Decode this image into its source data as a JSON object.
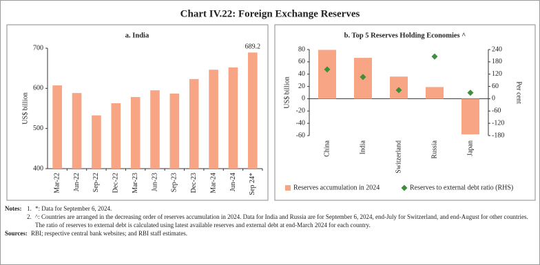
{
  "title": "Chart IV.22: Foreign Exchange Reserves",
  "chart_data": [
    {
      "type": "bar",
      "title": "a. India",
      "y_label": "US$ billion",
      "categories": [
        "Mar-22",
        "Jun-22",
        "Sep-22",
        "Dec-22",
        "Mar-23",
        "Jun-23",
        "Sep-23",
        "Dec-23",
        "Mar-24",
        "Jun-24",
        "Sep 24*"
      ],
      "values": [
        607.3,
        588.3,
        532.7,
        562.9,
        578.4,
        595.1,
        586.9,
        623.2,
        646.4,
        652.0,
        689.2
      ],
      "color": "#f7a584",
      "ylim": [
        400,
        700
      ],
      "yticks": [
        400,
        500,
        600,
        700
      ],
      "show_value_label": "last"
    },
    {
      "type": "combo",
      "title": "b. Top 5 Reserves Holding Economies ^",
      "y_label": "US$ billion",
      "y2_label": "Per cent",
      "categories": [
        "China",
        "India",
        "Switzerland",
        "Russia",
        "Japan"
      ],
      "series": [
        {
          "name": "Reserves accumulation in 2024",
          "color": "#f7a584",
          "type": "bar",
          "values": [
            79.5,
            66.5,
            36,
            19,
            -58
          ]
        },
        {
          "name": "Reserves to external debt ratio (RHS)",
          "color": "#3e8e3e",
          "type": "scatter",
          "marker": "diamond",
          "axis": "y2",
          "values": [
            143,
            106,
            42,
            206,
            29
          ]
        }
      ],
      "ylim": [
        -60,
        80
      ],
      "yticks": [
        -60,
        -40,
        -20,
        0,
        20,
        40,
        60,
        80
      ],
      "y2lim": [
        -180,
        240
      ],
      "y2ticks": [
        -180,
        -120,
        -60,
        0,
        60,
        120,
        180,
        240
      ]
    }
  ],
  "notes": {
    "label": "Notes:",
    "items": [
      {
        "number": "1.",
        "text": "*: Data for September 6, 2024."
      },
      {
        "number": "2.",
        "text": "^: Countries are arranged in the decreasing order of reserves accumulation in 2024. Data for India and Russia are for September 6, 2024, end-July for Switzerland, and end-August for other countries. The ratio of reserves to external debt is calculated using latest available reserves and external debt at end-March 2024 for each country."
      }
    ]
  },
  "sources": {
    "label": "Sources:",
    "text": "RBI; respective central bank websites; and RBI staff estimates."
  }
}
